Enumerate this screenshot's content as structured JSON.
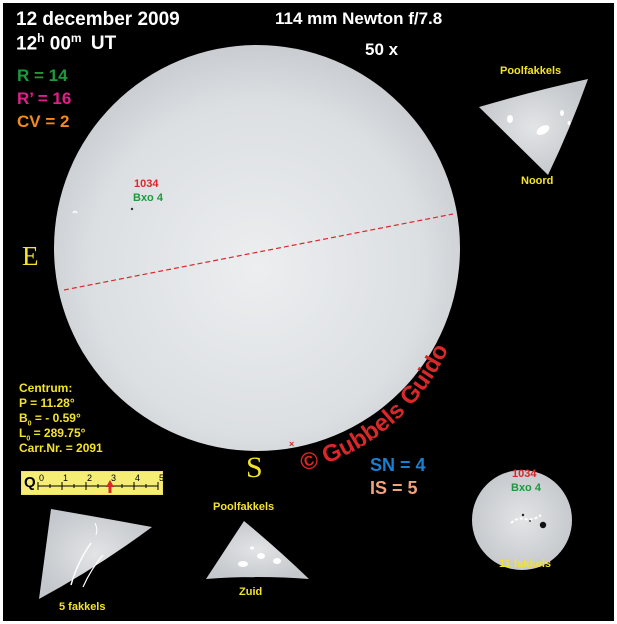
{
  "header": {
    "date": "12 december 2009",
    "time_hours": "12",
    "time_h_sup": "h",
    "time_minutes": "00",
    "time_m_sup": "m",
    "time_ut": "UT",
    "telescope": "114 mm Newton f/7.8",
    "magnification": "50 x"
  },
  "counts": {
    "r": "R = 14",
    "r_prime": "R’ = 16",
    "cv": "CV = 2",
    "sn": "SN = 4",
    "is": "IS = 5"
  },
  "directions": {
    "east": "E",
    "south": "S"
  },
  "group": {
    "number": "1034",
    "class": "Bxo 4"
  },
  "centrum": {
    "title": "Centrum:",
    "p": "P  =  11.28°",
    "b0_label": "B",
    "b0_sub": "0",
    "b0_value": " = - 0.59°",
    "l0_label": "L",
    "l0_sub": "0",
    "l0_value": " =  289.75°",
    "carr": "Carr.Nr. = 2091"
  },
  "q_scale": {
    "letter": "Q",
    "ticks": [
      "0",
      "1",
      "2",
      "3",
      "4",
      "5"
    ],
    "value": 3
  },
  "insets": {
    "north_title": "Poolfakkels",
    "north_label": "Noord",
    "south_title": "Poolfakkels",
    "south_label": "Zuid",
    "limb_facula_label": "5 fakkels",
    "detail_number": "1034",
    "detail_class": "Bxo 4",
    "detail_faculae": "11 fakkels"
  },
  "credit": "© Gubbels Guido",
  "colors": {
    "background": "#000000",
    "disk": "#dfe1e3",
    "r": "#1c9a3c",
    "r_prime": "#e01f8a",
    "cv": "#f28a1e",
    "sn": "#1a7fd0",
    "is": "#f2a27a",
    "credit": "#d8282a",
    "label_yellow": "#f3e32a",
    "equator_dash": "#d8282a",
    "group_number": "#d8282a",
    "group_class": "#1c9a3c"
  }
}
